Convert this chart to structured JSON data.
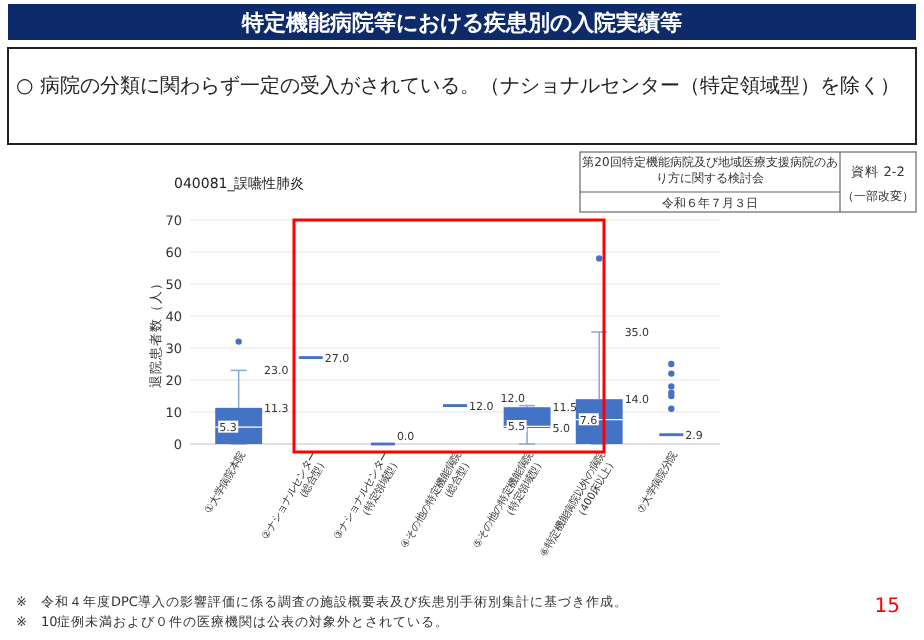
{
  "chart_data": {
    "type": "box",
    "title": "040081_誤嚥性肺炎",
    "ylabel": "退院患者数（人）",
    "categories": [
      "①大学病院本院",
      "②ナショナルセンター（総合型）",
      "③ナショナルセンター（特定領域型）",
      "④その他の特定機能病院（総合型）",
      "⑤その他の特定機能病院（特定領域型）",
      "⑥特定機能病院以外の病院（400床以上）",
      "⑦大学病院分院"
    ],
    "boxes": [
      {
        "low": 0,
        "q1": 0,
        "median": 5.3,
        "q3": 11.3,
        "high": 23.0,
        "outliers": [
          32
        ]
      },
      {
        "low": 27.0,
        "q1": 27.0,
        "median": 27.0,
        "q3": 27.0,
        "high": 27.0
      },
      {
        "low": 0.0,
        "q1": 0.0,
        "median": 0.0,
        "q3": 0.0,
        "high": 0.0
      },
      {
        "low": 12.0,
        "q1": 12.0,
        "median": 12.0,
        "q3": 12.0,
        "high": 12.0
      },
      {
        "low": 0,
        "q1": 5.0,
        "median": 5.5,
        "q3": 11.5,
        "high": 12.0
      },
      {
        "low": 0,
        "q1": 0,
        "median": 7.6,
        "q3": 14.0,
        "high": 35.0,
        "outliers": [
          58
        ]
      },
      {
        "low": 2.9,
        "q1": 2.9,
        "median": 2.9,
        "q3": 2.9,
        "high": 2.9,
        "outliers": [
          25,
          22,
          18,
          16,
          15,
          11
        ]
      }
    ],
    "color": "#4472c4",
    "ylim": [
      0,
      70
    ],
    "yticks": [
      0,
      10,
      20,
      30,
      40,
      50,
      60,
      70
    ],
    "grid": "y",
    "annotations": [
      {
        "text": "23.0",
        "x": "①大学病院本院",
        "y": 23.0
      },
      {
        "text": "11.3",
        "x": "①大学病院本院",
        "y": 11.3
      },
      {
        "text": "5.3",
        "x": "①大学病院本院",
        "y": 5.3
      },
      {
        "text": "27.0",
        "x": "②ナショナルセンター（総合型）",
        "y": 27.0
      },
      {
        "text": "0.0",
        "x": "③ナショナルセンター（特定領域型）",
        "y": 0.0
      },
      {
        "text": "12.0",
        "x": "④その他の特定機能病院（総合型）",
        "y": 12.0
      },
      {
        "text": "12.0",
        "x": "⑤その他の特定機能病院（特定領域型）",
        "y": 12.0
      },
      {
        "text": "11.5",
        "x": "⑤その他の特定機能病院（特定領域型）",
        "y": 11.5
      },
      {
        "text": "5.5",
        "x": "⑤その他の特定機能病院（特定領域型）",
        "y": 5.5
      },
      {
        "text": "5.0",
        "x": "⑤その他の特定機能病院（特定領域型）",
        "y": 5.0
      },
      {
        "text": "35.0",
        "x": "⑥特定機能病院以外の病院（400床以上）",
        "y": 35.0
      },
      {
        "text": "14.0",
        "x": "⑥特定機能病院以外の病院（400床以上）",
        "y": 14.0
      },
      {
        "text": "7.6",
        "x": "⑥特定機能病院以外の病院（400床以上）",
        "y": 7.6
      },
      {
        "text": "2.9",
        "x": "⑦大学病院分院",
        "y": 2.9
      },
      "特定機能病院等における疾患別の入院実績等",
      "○ 病院の分類に関わらず一定の受入がされている。（ナショナルセンター（特定領域型）を除く）",
      "第20回特定機能病院及び地域医療支援病院のあり方に関する検討会",
      "令和６年７月３日",
      "資料 2-2",
      "（一部改変）",
      "※　令和４年度DPC導入の影響評価に係る調査の施設概要表及び疾患別手術別集計に基づき作成。",
      "※　10症例未満および０件の医療機関は公表の対象外とされている。",
      "15"
    ]
  }
}
